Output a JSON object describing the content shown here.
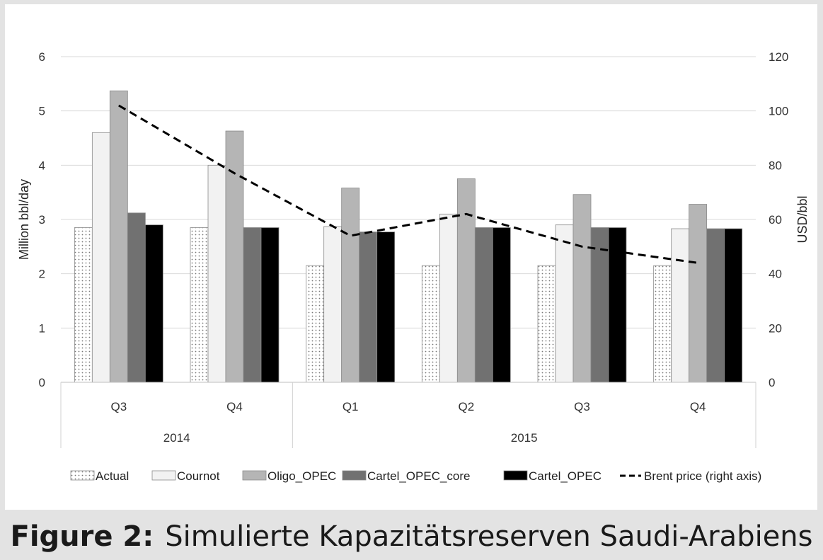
{
  "caption": {
    "label": "Figure 2:",
    "text": "Simulierte Kapazitätsreserven Saudi-Arabiens"
  },
  "chart_data": {
    "type": "bar",
    "categories": [
      "Q3",
      "Q4",
      "Q1",
      "Q2",
      "Q3",
      "Q4"
    ],
    "groups": [
      {
        "label": "2014",
        "span": 2
      },
      {
        "label": "2015",
        "span": 4
      }
    ],
    "ylabel": "Million bbl/day",
    "y2label": "USD/bbl",
    "ylim": [
      0,
      6
    ],
    "y2lim": [
      0,
      120
    ],
    "yticks": [
      0,
      1,
      2,
      3,
      4,
      5,
      6
    ],
    "y2ticks": [
      0,
      20,
      40,
      60,
      80,
      100,
      120
    ],
    "grid": true,
    "legend_position": "bottom",
    "series": [
      {
        "name": "Actual",
        "style": "dotted",
        "color": "#ffffff",
        "values": [
          2.85,
          2.85,
          2.15,
          2.15,
          2.15,
          2.15
        ]
      },
      {
        "name": "Cournot",
        "style": "solid",
        "color": "#f2f2f2",
        "values": [
          4.6,
          4.0,
          2.87,
          3.1,
          2.9,
          2.83
        ]
      },
      {
        "name": "Oligo_OPEC",
        "style": "solid",
        "color": "#b5b5b5",
        "values": [
          5.37,
          4.63,
          3.58,
          3.75,
          3.46,
          3.28
        ]
      },
      {
        "name": "Cartel_OPEC_core",
        "style": "solid",
        "color": "#717171",
        "values": [
          3.12,
          2.85,
          2.77,
          2.85,
          2.85,
          2.83
        ]
      },
      {
        "name": "Cartel_OPEC",
        "style": "solid",
        "color": "#000000",
        "values": [
          2.9,
          2.85,
          2.77,
          2.85,
          2.85,
          2.83
        ]
      }
    ],
    "line_series": {
      "name": "Brent price (right axis)",
      "axis": "right",
      "style": "dashed",
      "color": "#000000",
      "values": [
        102,
        77,
        54,
        62,
        50,
        44
      ]
    }
  }
}
